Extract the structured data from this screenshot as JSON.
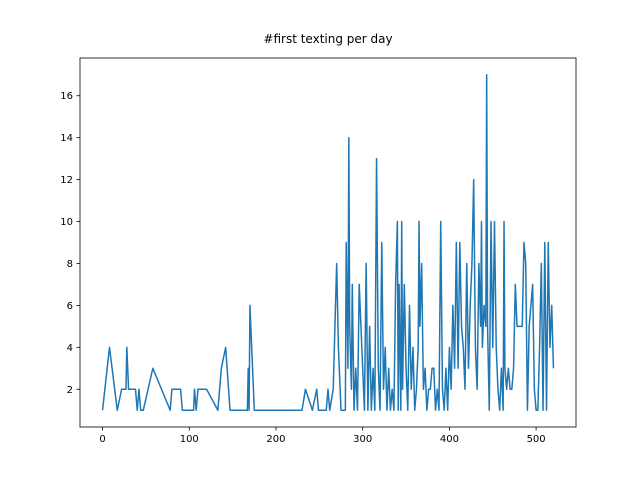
{
  "chart_data": {
    "type": "line",
    "title": "#first texting per day",
    "x": [
      0,
      8,
      17,
      22,
      27,
      28,
      30,
      38,
      40,
      42,
      44,
      47,
      58,
      78,
      80,
      90,
      92,
      105,
      106,
      108,
      110,
      120,
      133,
      137,
      142,
      147,
      167,
      168,
      169,
      170,
      175,
      230,
      234,
      242,
      247,
      249,
      258,
      260,
      262,
      266,
      270,
      272,
      275,
      280,
      281,
      283,
      284,
      285,
      287,
      288,
      290,
      292,
      294,
      296,
      298,
      300,
      302,
      304,
      306,
      308,
      310,
      312,
      314,
      316,
      318,
      320,
      322,
      324,
      326,
      328,
      330,
      332,
      334,
      336,
      338,
      340,
      341,
      342,
      344,
      345,
      346,
      348,
      350,
      352,
      354,
      356,
      358,
      360,
      362,
      364,
      365,
      366,
      368,
      370,
      372,
      374,
      376,
      378,
      380,
      382,
      384,
      386,
      388,
      390,
      392,
      394,
      396,
      398,
      400,
      402,
      404,
      406,
      408,
      410,
      412,
      414,
      416,
      418,
      420,
      422,
      424,
      426,
      428,
      430,
      432,
      434,
      436,
      437,
      438,
      440,
      442,
      443,
      444,
      446,
      448,
      450,
      452,
      454,
      456,
      458,
      460,
      462,
      463,
      464,
      466,
      468,
      470,
      472,
      474,
      476,
      478,
      480,
      482,
      484,
      486,
      488,
      490,
      492,
      494,
      496,
      498,
      500,
      502,
      504,
      506,
      508,
      510,
      512,
      514,
      516,
      518,
      520
    ],
    "series": [
      {
        "color": "#1f77b4",
        "values": [
          1,
          4,
          1,
          2,
          2,
          4,
          2,
          2,
          1,
          2,
          1,
          1,
          3,
          1,
          2,
          2,
          1,
          1,
          2,
          1,
          2,
          2,
          1,
          3,
          4,
          1,
          1,
          3,
          1,
          6,
          1,
          1,
          2,
          1,
          2,
          1,
          1,
          2,
          1,
          2,
          8,
          4,
          1,
          1,
          9,
          3,
          14,
          5,
          2,
          7,
          1,
          3,
          1,
          7,
          5,
          3,
          1,
          8,
          1,
          5,
          1,
          3,
          1,
          13,
          3,
          1,
          9,
          2,
          4,
          1,
          3,
          1,
          2,
          1,
          7,
          10,
          1,
          7,
          1,
          10,
          2,
          7,
          3,
          1,
          6,
          2,
          4,
          1,
          2,
          4,
          10,
          5,
          8,
          2,
          3,
          1,
          2,
          2,
          3,
          3,
          1,
          2,
          1,
          10,
          2,
          1,
          3,
          1,
          4,
          2,
          6,
          3,
          9,
          3,
          9,
          5,
          4,
          2,
          8,
          3,
          6,
          8,
          12,
          4,
          2,
          8,
          5,
          10,
          4,
          6,
          5,
          17,
          5,
          1,
          10,
          4,
          10,
          4,
          2,
          1,
          3,
          1,
          10,
          3,
          2,
          3,
          2,
          2,
          3,
          7,
          5,
          5,
          5,
          5,
          9,
          8,
          1,
          5,
          6,
          7,
          2,
          1,
          1,
          4,
          8,
          1,
          9,
          1,
          9,
          4,
          6,
          3
        ]
      }
    ],
    "xlim": [
      -26,
      546
    ],
    "ylim": [
      0.2,
      17.8
    ],
    "xticks": [
      0,
      100,
      200,
      300,
      400,
      500
    ],
    "yticks": [
      2,
      4,
      6,
      8,
      10,
      12,
      14,
      16
    ],
    "grid": false
  }
}
